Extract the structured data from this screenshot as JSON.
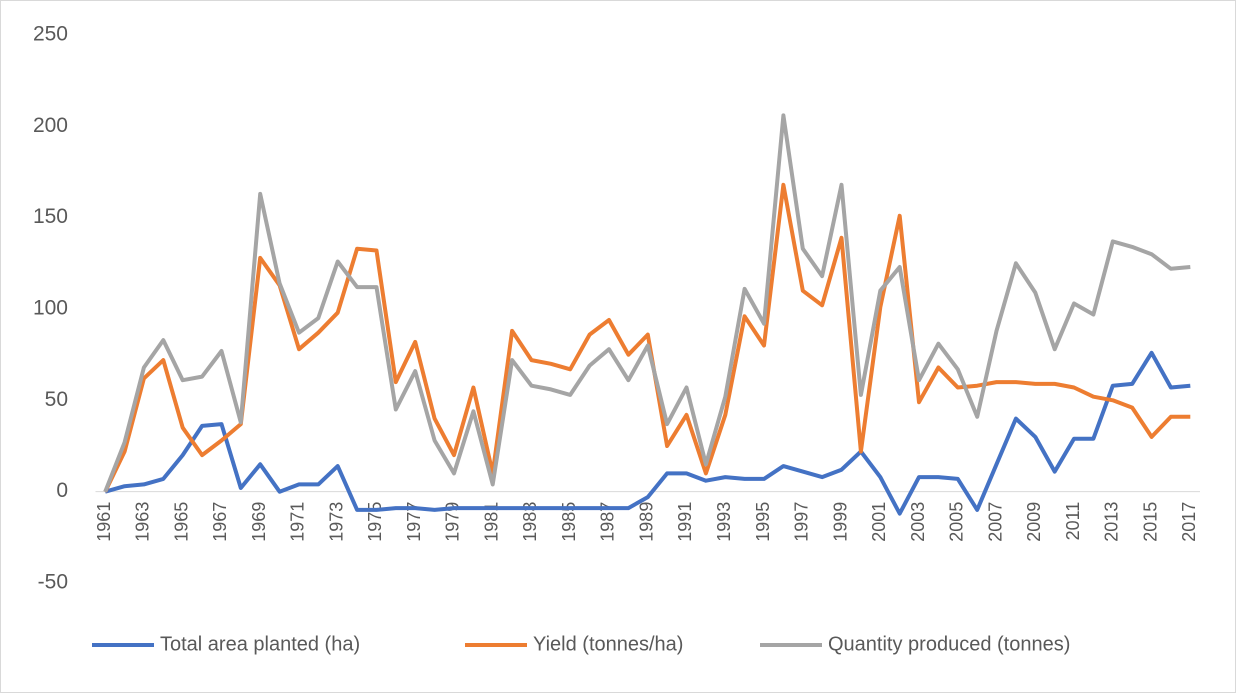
{
  "chart_data": {
    "type": "line",
    "categories": [
      "1961",
      null,
      "1963",
      null,
      "1965",
      null,
      "1967",
      null,
      "1969",
      null,
      "1971",
      null,
      "1973",
      null,
      "1975",
      null,
      "1977",
      null,
      "1979",
      null,
      "1981",
      null,
      "1983",
      null,
      "1985",
      null,
      "1987",
      null,
      "1989",
      null,
      "1991",
      null,
      "1993",
      null,
      "1995",
      null,
      "1997",
      null,
      "1999",
      null,
      "2001",
      null,
      "2003",
      null,
      "2005",
      null,
      "2007",
      null,
      "2009",
      null,
      "2011",
      null,
      "2013",
      null,
      "2015",
      null,
      "2017"
    ],
    "series": [
      {
        "name": "Total area planted (ha)",
        "color": "#4472c4",
        "values": [
          0,
          3,
          4,
          7,
          20,
          36,
          37,
          2,
          15,
          0,
          4,
          4,
          14,
          -10,
          -10,
          -9,
          -9,
          -10,
          -9,
          -9,
          -9,
          -9,
          -9,
          -9,
          -9,
          -9,
          -9,
          -9,
          -3,
          10,
          10,
          6,
          8,
          7,
          7,
          14,
          11,
          8,
          12,
          22,
          8,
          -12,
          8,
          8,
          7,
          -10,
          15,
          40,
          30,
          11,
          29,
          29,
          58,
          59,
          76,
          57,
          58
        ]
      },
      {
        "name": "Yield (tonnes/ha)",
        "color": "#ed7d31",
        "values": [
          0,
          22,
          62,
          72,
          35,
          20,
          28,
          37,
          128,
          113,
          78,
          87,
          98,
          133,
          132,
          60,
          82,
          40,
          20,
          57,
          10,
          88,
          72,
          70,
          67,
          86,
          94,
          75,
          86,
          25,
          42,
          10,
          42,
          96,
          80,
          168,
          110,
          102,
          139,
          22,
          101,
          151,
          49,
          68,
          57,
          58,
          60,
          60,
          59,
          59,
          57,
          52,
          50,
          46,
          30,
          41,
          41
        ]
      },
      {
        "name": "Quantity produced (tonnes)",
        "color": "#a5a5a5",
        "values": [
          0,
          27,
          68,
          83,
          61,
          63,
          77,
          38,
          163,
          114,
          87,
          95,
          126,
          112,
          112,
          45,
          66,
          28,
          10,
          44,
          4,
          72,
          58,
          56,
          53,
          69,
          78,
          61,
          80,
          37,
          57,
          15,
          52,
          111,
          92,
          206,
          133,
          118,
          168,
          53,
          110,
          123,
          61,
          81,
          67,
          41,
          88,
          125,
          109,
          78,
          103,
          97,
          137,
          134,
          130,
          122,
          123
        ]
      }
    ],
    "ylim": [
      -50,
      250
    ],
    "yticks": [
      -50,
      0,
      50,
      100,
      150,
      200,
      250
    ],
    "grid": false,
    "legend": "bottom"
  }
}
